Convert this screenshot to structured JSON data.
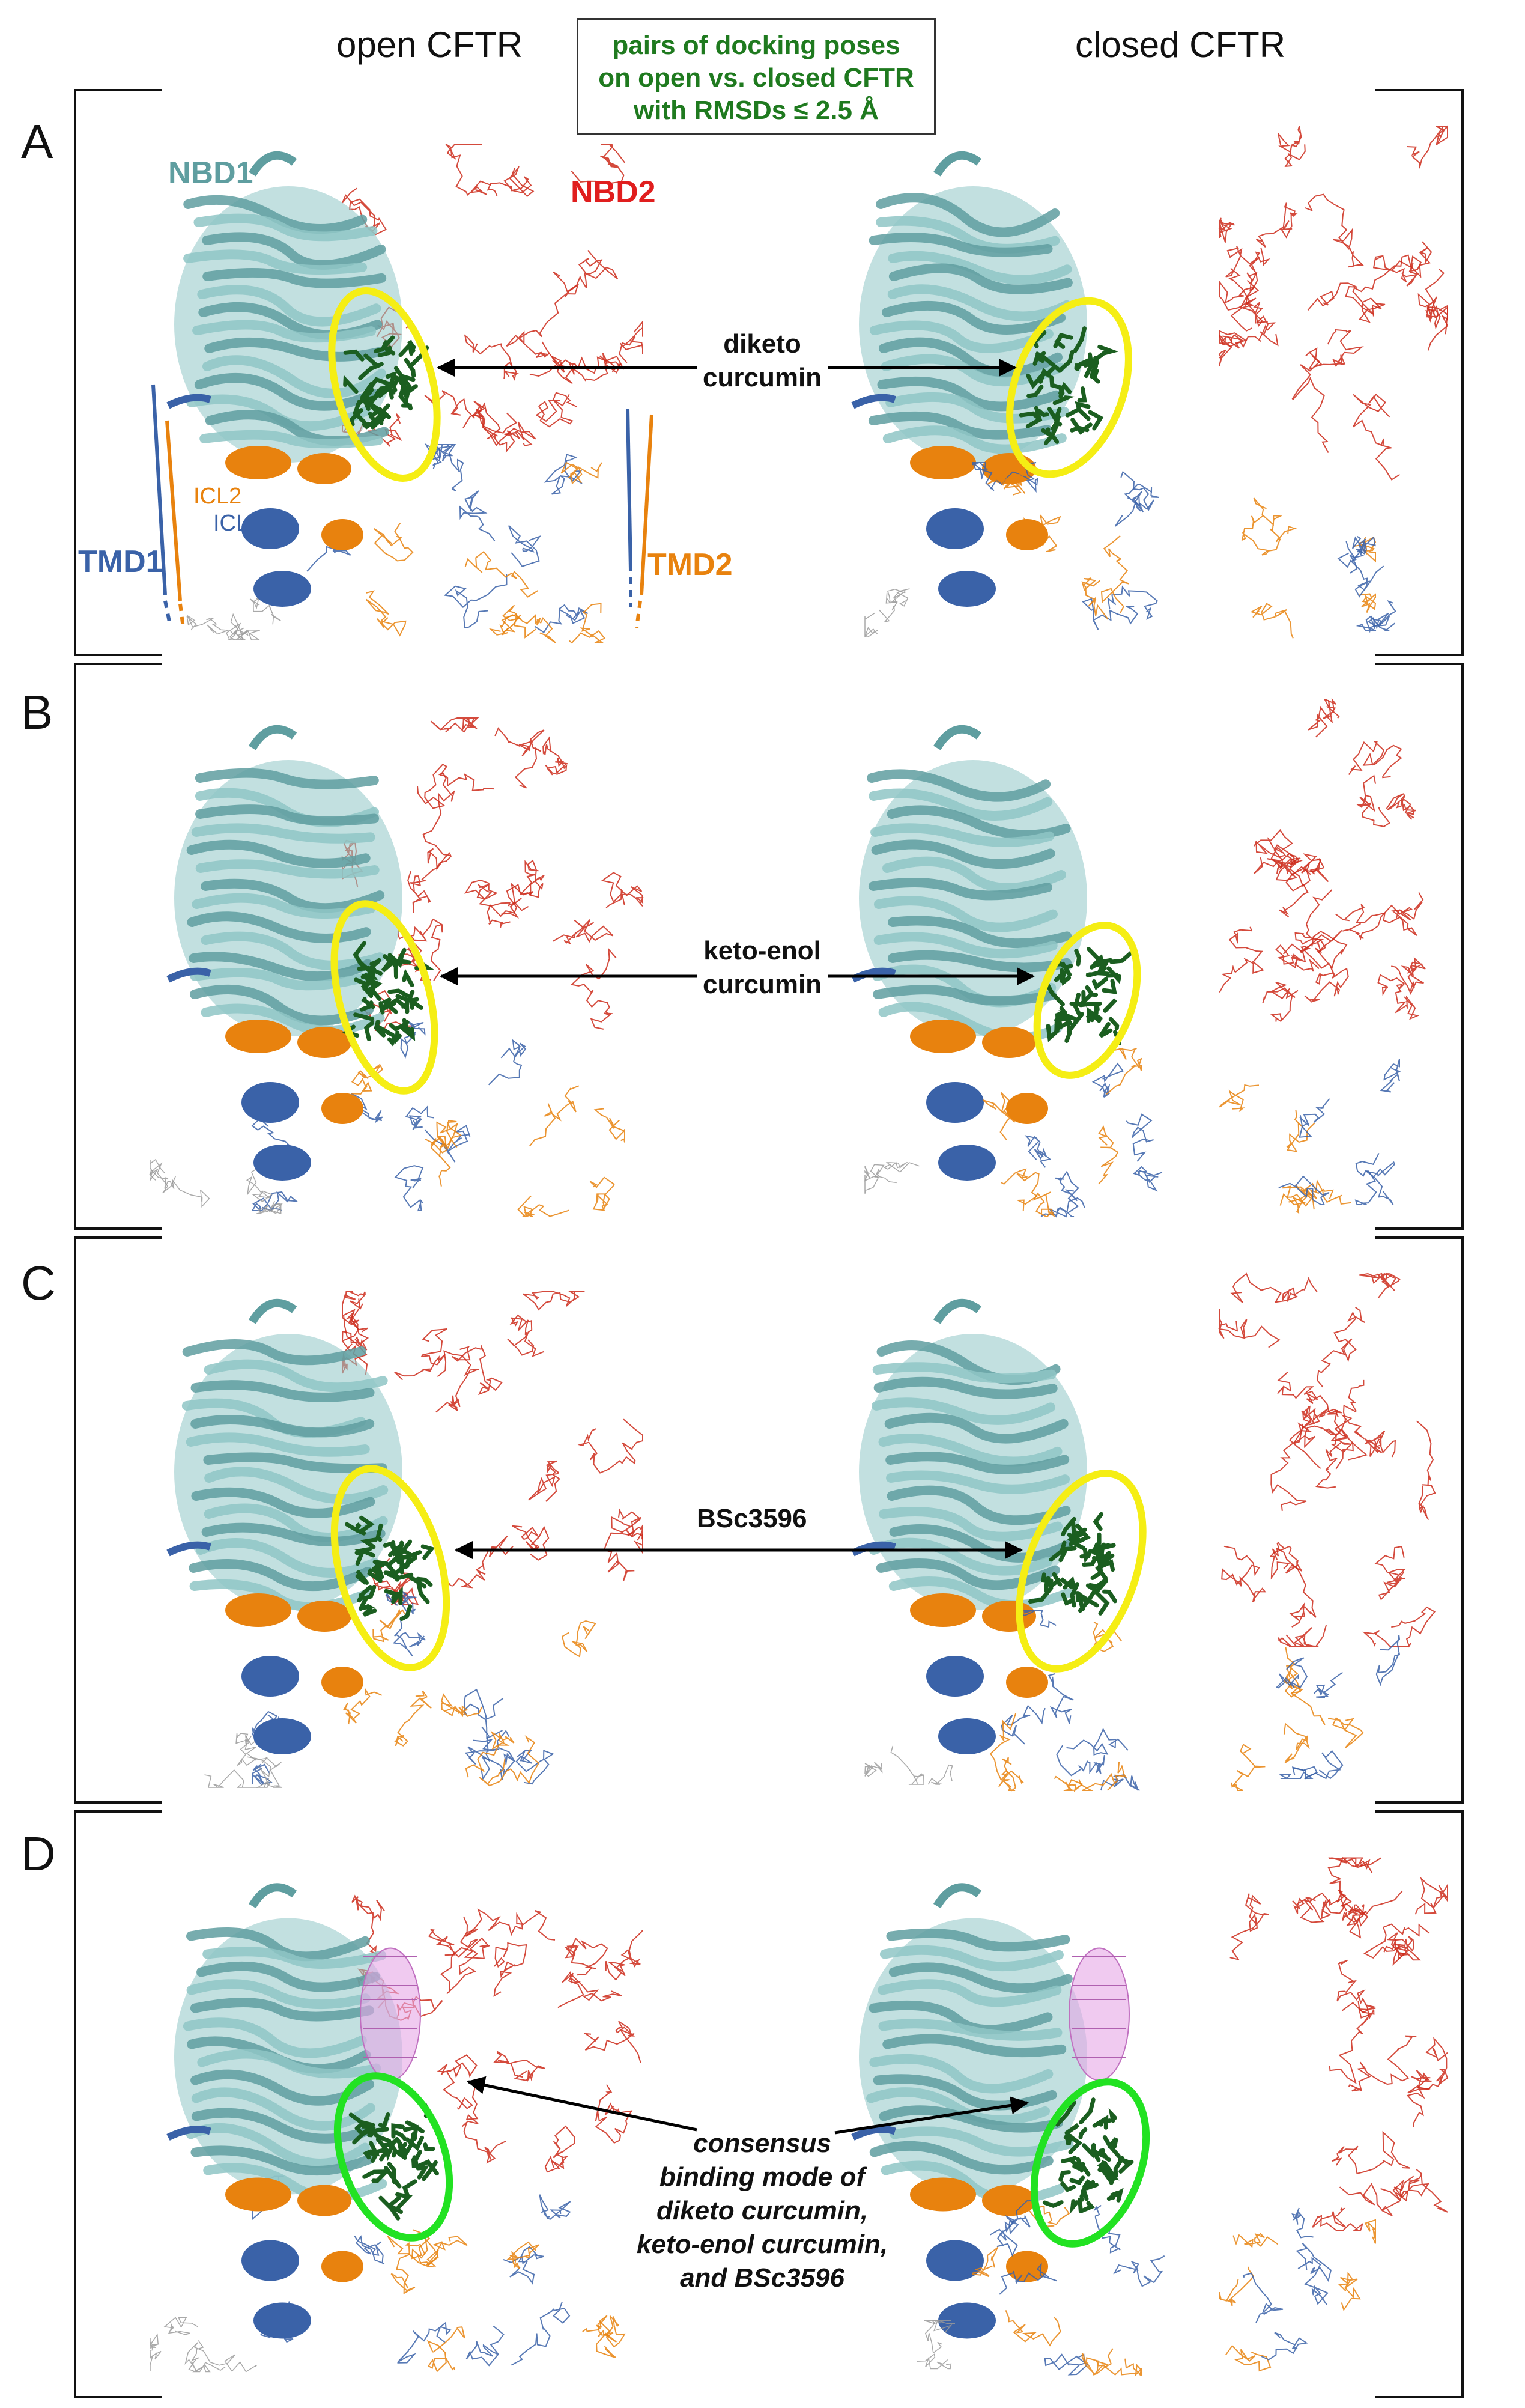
{
  "header": {
    "open": "open CFTR",
    "closed": "closed CFTR"
  },
  "legend": {
    "line1": "pairs of docking poses",
    "line2": "on open vs. closed CFTR",
    "line3": "with RMSDs ≤ 2.5 Å"
  },
  "labels": {
    "nbd1": "NBD1",
    "nbd2": "NBD2",
    "tmd1": "TMD1",
    "tmd2": "TMD2",
    "icl1": "ICL1",
    "icl2": "ICL2"
  },
  "panels": [
    {
      "letter": "A",
      "ligand_line1": "diketo",
      "ligand_line2": "curcumin",
      "circle": "yellow"
    },
    {
      "letter": "B",
      "ligand_line1": "keto-enol",
      "ligand_line2": "curcumin",
      "circle": "yellow"
    },
    {
      "letter": "C",
      "ligand_line1": "BSc3596",
      "ligand_line2": "",
      "circle": "yellow"
    },
    {
      "letter": "D",
      "ligand_line1": "consensus",
      "ligand_line2": "binding mode of",
      "ligand_line3": "diketo curcumin,",
      "ligand_line4": "keto-enol curcumin,",
      "ligand_line5": "and BSc3596",
      "circle": "green"
    }
  ],
  "colors": {
    "nbd1": "#8fc6c6",
    "nbd1_dark": "#5f9ea0",
    "nbd2": "#cc2a1a",
    "tmd1": "#3a62a8",
    "tmd2": "#e8820e",
    "ligand": "#1b5e20",
    "yellow_circle": "#f5ee14",
    "green_circle": "#22e222",
    "legend_text": "#1f7a1f",
    "mesh": "#e6a6e6"
  }
}
